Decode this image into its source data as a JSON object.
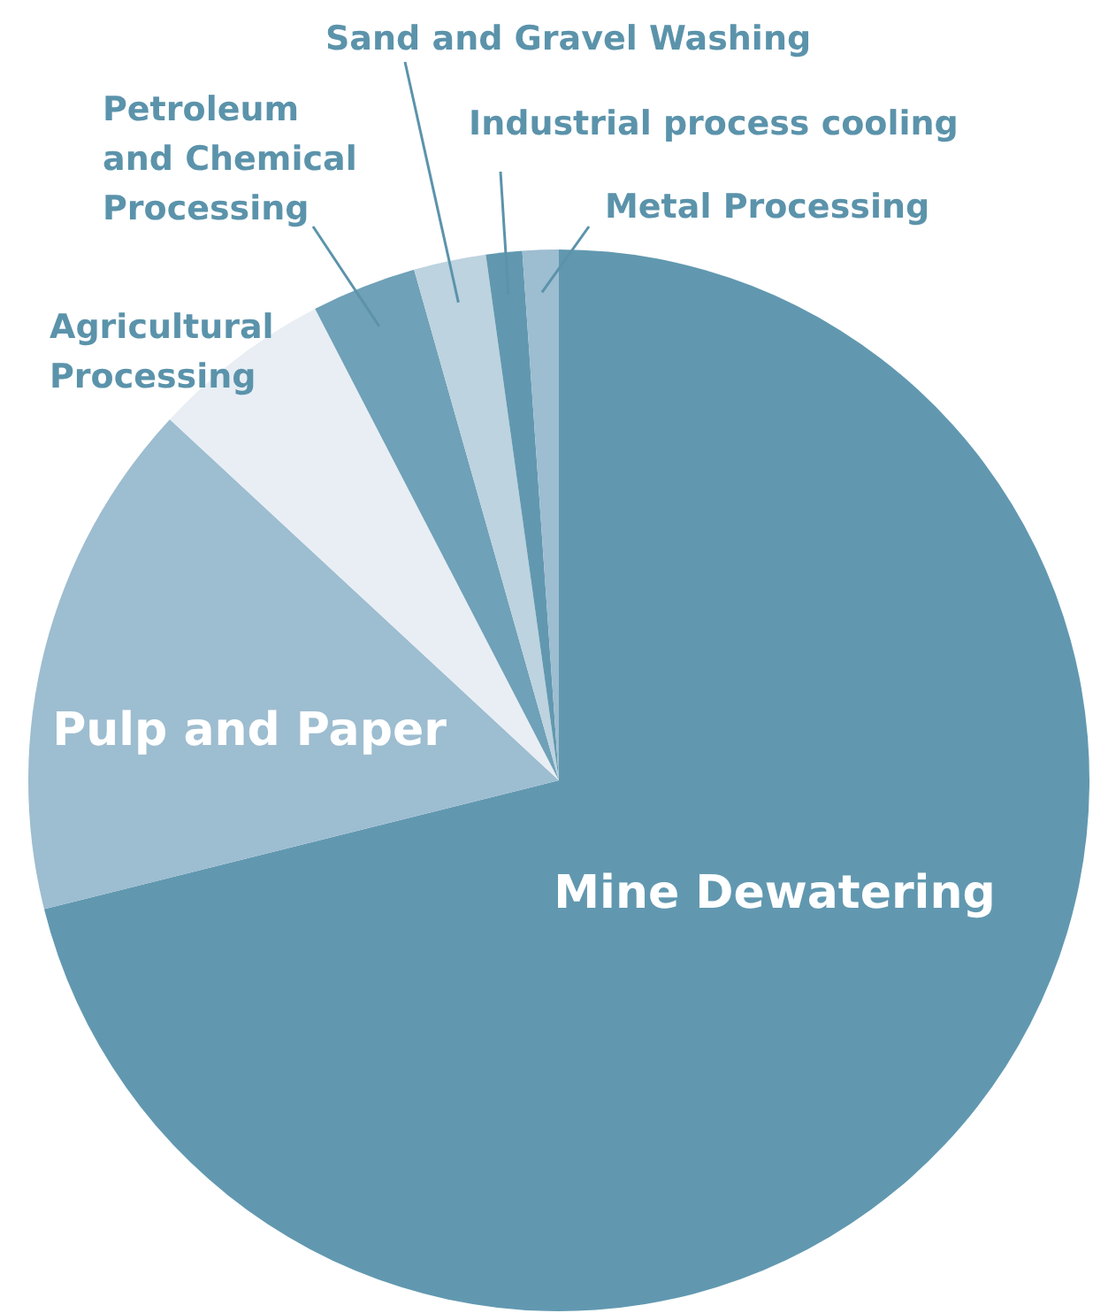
{
  "chart_data": {
    "type": "pie",
    "categories": [
      "Mine Dewatering",
      "Pulp and Paper",
      "Agricultural Processing",
      "Petroleum and Chemical Processing",
      "Sand and Gravel Washing",
      "Industrial process cooling",
      "Metal Processing"
    ],
    "values": [
      71.1,
      15.8,
      5.5,
      3.2,
      2.2,
      1.1,
      1.1
    ],
    "colors": [
      "#6198b0",
      "#9dbdd0",
      "#e8eef4",
      "#6fa1b8",
      "#bdd3df",
      "#6198b0",
      "#9dbdd0"
    ],
    "legend": false
  }
}
